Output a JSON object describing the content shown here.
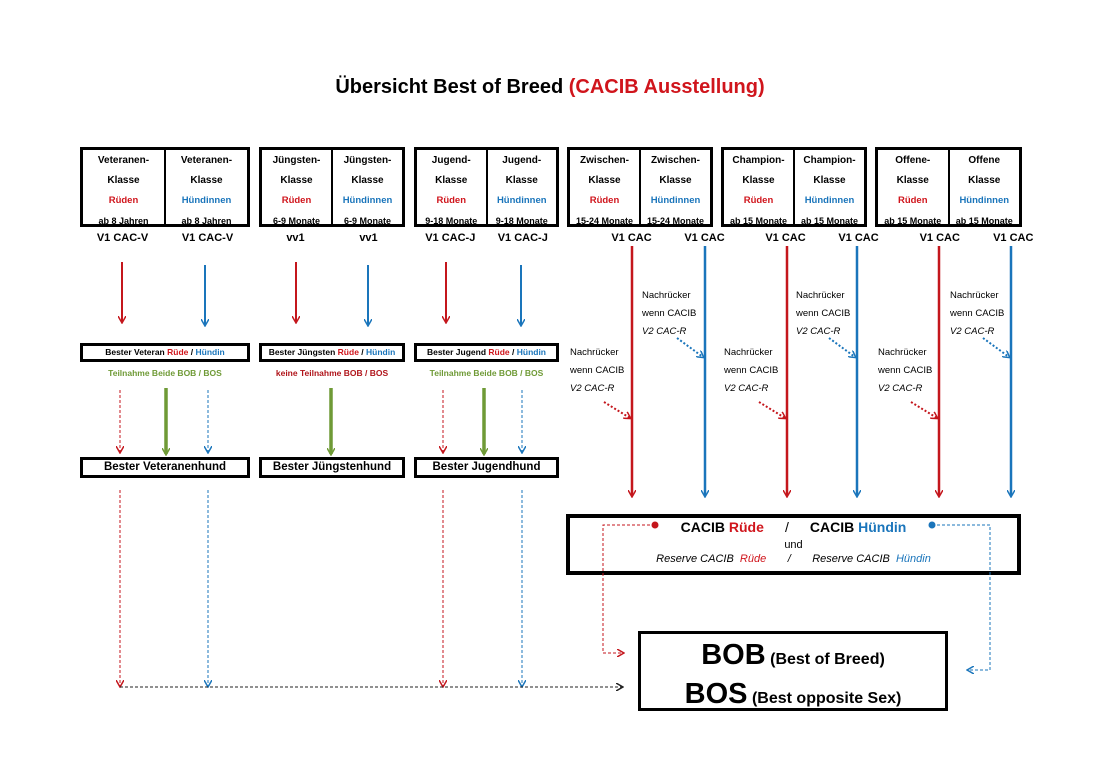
{
  "title": {
    "main": "Übersicht Best of Breed",
    "highlight": "(CACIB Ausstellung)"
  },
  "colors": {
    "male": "#d0151c",
    "female": "#1a75bb",
    "participation": "#6f9a36",
    "no_participation": "#b0141a"
  },
  "classes": [
    {
      "cells": [
        {
          "name1": "Veteranen-",
          "name2": "Klasse",
          "sex": "Rüden",
          "age": "ab 8 Jahren",
          "result": "V1 CAC-V"
        },
        {
          "name1": "Veteranen-",
          "name2": "Klasse",
          "sex": "Hündinnen",
          "age": "ab 8 Jahren",
          "result": "V1 CAC-V"
        }
      ]
    },
    {
      "cells": [
        {
          "name1": "Jüngsten-",
          "name2": "Klasse",
          "sex": "Rüden",
          "age": "6-9 Monate",
          "result": "vv1"
        },
        {
          "name1": "Jüngsten-",
          "name2": "Klasse",
          "sex": "Hündinnen",
          "age": "6-9 Monate",
          "result": "vv1"
        }
      ]
    },
    {
      "cells": [
        {
          "name1": "Jugend-",
          "name2": "Klasse",
          "sex": "Rüden",
          "age": "9-18 Monate",
          "result": "V1 CAC-J"
        },
        {
          "name1": "Jugend-",
          "name2": "Klasse",
          "sex": "Hündinnen",
          "age": "9-18 Monate",
          "result": "V1 CAC-J"
        }
      ]
    },
    {
      "cells": [
        {
          "name1": "Zwischen-",
          "name2": "Klasse",
          "sex": "Rüden",
          "age": "15-24 Monate",
          "result": "V1 CAC"
        },
        {
          "name1": "Zwischen-",
          "name2": "Klasse",
          "sex": "Hündinnen",
          "age": "15-24 Monate",
          "result": "V1 CAC"
        }
      ]
    },
    {
      "cells": [
        {
          "name1": "Champion-",
          "name2": "Klasse",
          "sex": "Rüden",
          "age": "ab 15 Monate",
          "result": "V1 CAC"
        },
        {
          "name1": "Champion-",
          "name2": "Klasse",
          "sex": "Hündinnen",
          "age": "ab 15 Monate",
          "result": "V1 CAC"
        }
      ]
    },
    {
      "cells": [
        {
          "name1": "Offene-",
          "name2": "Klasse",
          "sex": "Rüden",
          "age": "ab 15 Monate",
          "result": "V1 CAC"
        },
        {
          "name1": "Offene",
          "name2": "Klasse",
          "sex": "Hündinnen",
          "age": "ab 15 Monate",
          "result": "V1 CAC"
        }
      ]
    }
  ],
  "best": [
    {
      "prefix": "Bester Veteran",
      "male": "Rüde",
      "sep": " / ",
      "female": "Hündin",
      "participation": "Teilnahme Beide BOB / BOS",
      "final": "Bester Veteranenhund"
    },
    {
      "prefix": "Bester Jüngsten",
      "male": "Rüde",
      "sep": " / ",
      "female": "Hündin",
      "participation": "keine Teilnahme BOB / BOS",
      "final": "Bester Jüngstenhund"
    },
    {
      "prefix": "Bester Jugend",
      "male": "Rüde",
      "sep": " / ",
      "female": "Hündin",
      "participation": "Teilnahme Beide BOB / BOS",
      "final": "Bester Jugendhund"
    }
  ],
  "nachruecker": {
    "line1": "Nachrücker",
    "line2": "wenn CACIB",
    "line3": "V2 CAC-R"
  },
  "cacib": {
    "prefix": "CACIB",
    "male": "Rüde",
    "sep": "/",
    "female": "Hündin",
    "und": "und",
    "reserve_prefix": "Reserve CACIB",
    "reserve_male": "Rüde",
    "reserve_female": "Hündin"
  },
  "bob": {
    "bob": "BOB",
    "bob_text": "(Best of Breed)",
    "bos": "BOS",
    "bos_text": "(Best opposite Sex)"
  }
}
